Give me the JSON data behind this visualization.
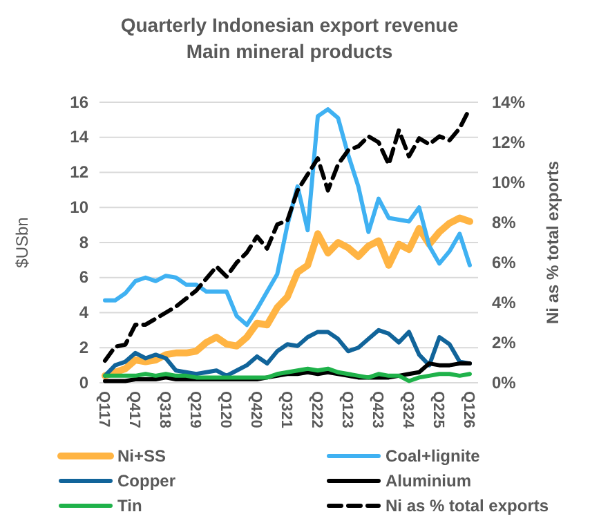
{
  "chart_data": {
    "type": "line",
    "title": "Quarterly Indonesian export revenue",
    "subtitle": "Main mineral products",
    "ylabel": "$USbn",
    "y2label": "Ni as % total exports",
    "categories": [
      "Q117",
      null,
      null,
      "Q417",
      null,
      null,
      "Q318",
      null,
      null,
      "Q219",
      null,
      null,
      "Q120",
      null,
      null,
      "Q420",
      null,
      null,
      "Q321",
      null,
      null,
      "Q222",
      null,
      null,
      "Q123",
      null,
      null,
      "Q423",
      null,
      null,
      "Q324",
      null,
      null,
      "Q225",
      null,
      null,
      "Q126"
    ],
    "ylim": [
      0,
      16
    ],
    "yticks": [
      0,
      2,
      4,
      6,
      8,
      10,
      12,
      14,
      16
    ],
    "y2lim": [
      0,
      14
    ],
    "y2ticks": [
      {
        "value": 0,
        "label": "0%"
      },
      {
        "value": 2,
        "label": "2%"
      },
      {
        "value": 4,
        "label": "4%"
      },
      {
        "value": 6,
        "label": "6%"
      },
      {
        "value": 8,
        "label": "8%"
      },
      {
        "value": 10,
        "label": "10%"
      },
      {
        "value": 12,
        "label": "12%"
      },
      {
        "value": 14,
        "label": "14%"
      }
    ],
    "grid": "y",
    "legend": "bottom",
    "marker": "none",
    "series": [
      {
        "name": "Ni+SS",
        "color": "#ffb443",
        "values": [
          0.4,
          0.6,
          0.8,
          1.3,
          1.2,
          1.3,
          1.6,
          1.7,
          1.7,
          1.8,
          2.3,
          2.6,
          2.2,
          2.1,
          2.6,
          3.4,
          3.3,
          4.3,
          4.9,
          6.3,
          6.7,
          8.5,
          7.4,
          8.0,
          7.7,
          7.2,
          7.8,
          8.1,
          6.7,
          7.9,
          7.6,
          8.8,
          7.9,
          8.6,
          9.1,
          9.4,
          9.2
        ]
      },
      {
        "name": "Coal+lignite",
        "color": "#3fb1f2",
        "values": [
          4.7,
          4.7,
          5.1,
          5.8,
          6.0,
          5.8,
          6.1,
          6.0,
          5.6,
          5.6,
          5.2,
          5.2,
          5.2,
          3.8,
          3.3,
          4.2,
          5.2,
          6.2,
          9.0,
          11.2,
          8.7,
          15.2,
          15.6,
          15.1,
          13.0,
          11.2,
          8.6,
          10.5,
          9.4,
          9.3,
          9.2,
          10.0,
          7.8,
          6.8,
          7.5,
          8.5,
          6.7
        ]
      },
      {
        "name": "Copper",
        "color": "#11649a",
        "values": [
          0.4,
          1.0,
          1.2,
          1.7,
          1.4,
          1.6,
          1.4,
          0.7,
          0.6,
          0.5,
          0.6,
          0.7,
          0.4,
          0.7,
          1.0,
          1.5,
          1.1,
          1.8,
          2.2,
          2.1,
          2.6,
          2.9,
          2.9,
          2.5,
          1.8,
          2.0,
          2.5,
          3.0,
          2.8,
          2.3,
          2.9,
          1.6,
          1.0,
          2.6,
          2.2,
          1.2,
          1.1
        ]
      },
      {
        "name": "Aluminium",
        "color": "#000000",
        "values": [
          0.1,
          0.1,
          0.1,
          0.2,
          0.2,
          0.2,
          0.3,
          0.2,
          0.2,
          0.2,
          0.2,
          0.2,
          0.2,
          0.2,
          0.2,
          0.2,
          0.3,
          0.4,
          0.5,
          0.5,
          0.6,
          0.5,
          0.6,
          0.5,
          0.4,
          0.3,
          0.3,
          0.3,
          0.3,
          0.4,
          0.5,
          0.6,
          1.1,
          1.0,
          1.0,
          1.1,
          1.1
        ]
      },
      {
        "name": "Tin",
        "color": "#1fb24a",
        "values": [
          0.4,
          0.4,
          0.4,
          0.4,
          0.5,
          0.4,
          0.5,
          0.4,
          0.4,
          0.3,
          0.3,
          0.3,
          0.3,
          0.3,
          0.3,
          0.3,
          0.3,
          0.5,
          0.6,
          0.7,
          0.8,
          0.7,
          0.8,
          0.6,
          0.5,
          0.4,
          0.3,
          0.5,
          0.4,
          0.4,
          0.1,
          0.3,
          0.4,
          0.5,
          0.5,
          0.4,
          0.5
        ]
      },
      {
        "name": "Ni as % total exports",
        "color": "#000000",
        "axis": "y2",
        "line_style": "dashed",
        "values": [
          1.1,
          1.8,
          1.9,
          2.9,
          2.9,
          3.2,
          3.5,
          3.8,
          4.2,
          4.6,
          5.2,
          5.8,
          5.3,
          6.0,
          6.5,
          7.3,
          6.7,
          7.9,
          8.1,
          9.6,
          10.4,
          11.2,
          9.6,
          10.9,
          11.6,
          11.8,
          12.3,
          12.0,
          10.9,
          12.6,
          11.3,
          12.2,
          11.9,
          12.3,
          12.1,
          12.7,
          13.7
        ]
      }
    ]
  }
}
